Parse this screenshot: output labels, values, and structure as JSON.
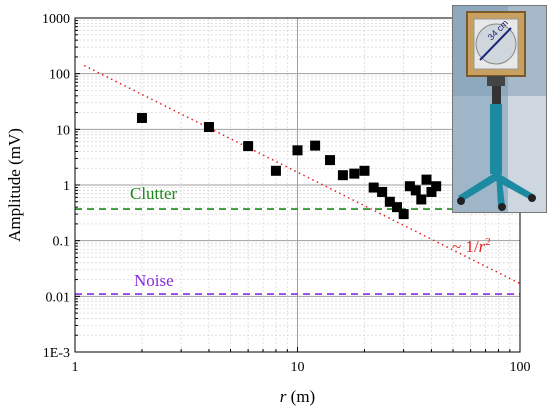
{
  "chart_data": {
    "type": "scatter",
    "title": "",
    "xlabel": "r (m)",
    "xlabel_parts": {
      "var": "r",
      "unit": " (m)"
    },
    "ylabel": "Amplitude (mV)",
    "x_scale": "log",
    "y_scale": "log",
    "xlim": [
      1,
      100
    ],
    "ylim": [
      0.001,
      1000
    ],
    "x_ticks": [
      1,
      10,
      100
    ],
    "x_tick_labels": [
      "1",
      "10",
      "100"
    ],
    "y_ticks": [
      0.001,
      0.01,
      0.1,
      1,
      10,
      100,
      1000
    ],
    "y_tick_labels": [
      "1E-3",
      "0.01",
      "0.1",
      "1",
      "10",
      "100",
      "1000"
    ],
    "grid": true,
    "series": [
      {
        "marker": "square",
        "color": "#000000",
        "points": [
          {
            "x": 2,
            "y": 16
          },
          {
            "x": 4,
            "y": 11
          },
          {
            "x": 6,
            "y": 5
          },
          {
            "x": 8,
            "y": 1.8
          },
          {
            "x": 10,
            "y": 4.2
          },
          {
            "x": 12,
            "y": 5.1
          },
          {
            "x": 14,
            "y": 2.8
          },
          {
            "x": 16,
            "y": 1.5
          },
          {
            "x": 18,
            "y": 1.6
          },
          {
            "x": 20,
            "y": 1.8
          },
          {
            "x": 22,
            "y": 0.9
          },
          {
            "x": 24,
            "y": 0.75
          },
          {
            "x": 26,
            "y": 0.5
          },
          {
            "x": 28,
            "y": 0.4
          },
          {
            "x": 30,
            "y": 0.3
          },
          {
            "x": 32,
            "y": 0.95
          },
          {
            "x": 34,
            "y": 0.8
          },
          {
            "x": 36,
            "y": 0.55
          },
          {
            "x": 38,
            "y": 1.25
          },
          {
            "x": 40,
            "y": 0.75
          },
          {
            "x": 42,
            "y": 0.95
          }
        ]
      }
    ],
    "reference_lines": [
      {
        "name": "Clutter",
        "y": 0.37,
        "color": "#1a8a1a",
        "style": "dashed"
      },
      {
        "name": "Noise",
        "y": 0.011,
        "color": "#8a2be2",
        "style": "dashed"
      }
    ],
    "fit_line": {
      "label": "~ 1/r²",
      "label_parts": {
        "prefix": "~ 1/",
        "var": "r",
        "sup": "2"
      },
      "color": "#e02020",
      "style": "dotted",
      "points": [
        {
          "x": 1.1,
          "y": 140
        },
        {
          "x": 100,
          "y": 0.017
        }
      ]
    }
  },
  "inset": {
    "annotation": "34 cm",
    "colors": {
      "background": "#9fb6c9",
      "stand": "#1c8aa0",
      "frame": "#c8a060",
      "wall": "#d9dfe6"
    }
  }
}
